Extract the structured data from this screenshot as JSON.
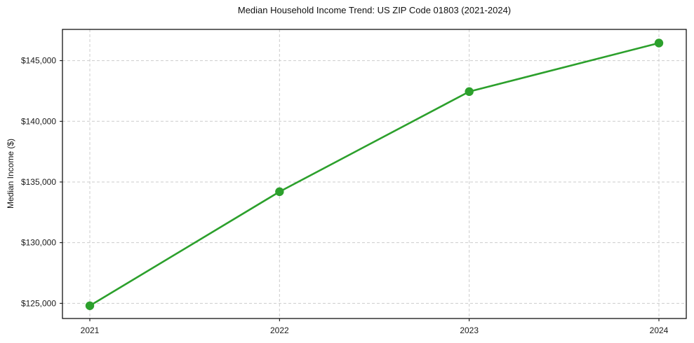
{
  "chart_data": {
    "type": "line",
    "title": "Median Household Income Trend: US ZIP Code 01803 (2021-2024)",
    "xlabel": "",
    "ylabel": "Median Income ($)",
    "categories": [
      "2021",
      "2022",
      "2023",
      "2024"
    ],
    "values": [
      124800,
      134200,
      142450,
      146450
    ],
    "yticks": [
      125000,
      130000,
      135000,
      140000,
      145000
    ],
    "ytick_labels": [
      "$125,000",
      "$130,000",
      "$135,000",
      "$140,000",
      "$145,000"
    ],
    "ylim": [
      123750,
      147575
    ],
    "grid": true,
    "grid_style": "dashed",
    "legend": "none",
    "line_color": "#2ca02c",
    "marker": "circle",
    "grid_color": "#cccccc",
    "axis_color": "#000000",
    "background": "#ffffff"
  }
}
